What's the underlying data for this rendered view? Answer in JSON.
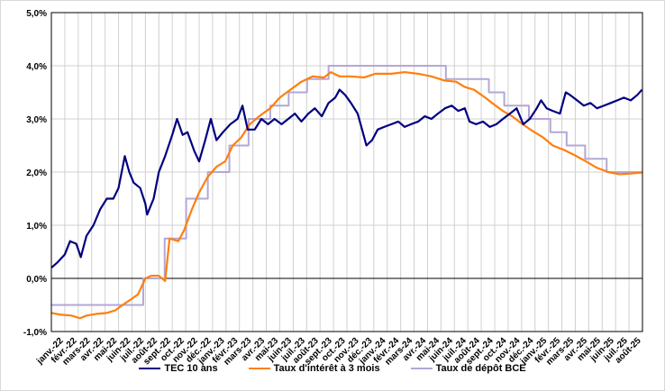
{
  "chart_data": {
    "type": "line",
    "title": "",
    "xlabel": "",
    "ylabel": "",
    "ylim": [
      -1.0,
      5.0
    ],
    "yticks": [
      "-1,0%",
      "0,0%",
      "1,0%",
      "2,0%",
      "3,0%",
      "4,0%",
      "5,0%"
    ],
    "ytick_values": [
      -1,
      0,
      1,
      2,
      3,
      4,
      5
    ],
    "grid": true,
    "legend_position": "bottom",
    "xtick_labels": [
      "janv.-22",
      "févr.-22",
      "mars-22",
      "avr.-22",
      "mai-22",
      "juin-22",
      "juil.-22",
      "août-22",
      "sept.-22",
      "oct.-22",
      "nov.-22",
      "déc.-22",
      "janv.-23",
      "févr.-23",
      "mars-23",
      "avr.-23",
      "mai-23",
      "juin-23",
      "juil.-23",
      "août-23",
      "sept.-23",
      "oct.-23",
      "nov.-23",
      "déc.-23",
      "janv.-24",
      "févr.-24",
      "mars-24",
      "avr.-24",
      "mai-24",
      "juin-24",
      "juil.-24",
      "août-24",
      "sept.-24",
      "oct.-24",
      "nov.-24",
      "déc.-24",
      "janv.-25",
      "févr.-25",
      "mars-25",
      "avr.-25",
      "mai-25",
      "juin-25",
      "juil.-25",
      "août-25"
    ],
    "x_range": [
      "2022-01-01",
      "2025-08-31"
    ],
    "series": [
      {
        "name": "TEC 10 ans",
        "color": "#000080",
        "step": false,
        "points": [
          [
            "2022-01-01",
            0.2
          ],
          [
            "2022-01-15",
            0.3
          ],
          [
            "2022-02-01",
            0.45
          ],
          [
            "2022-02-12",
            0.7
          ],
          [
            "2022-02-25",
            0.65
          ],
          [
            "2022-03-07",
            0.4
          ],
          [
            "2022-03-20",
            0.8
          ],
          [
            "2022-04-05",
            1.0
          ],
          [
            "2022-04-20",
            1.3
          ],
          [
            "2022-05-05",
            1.5
          ],
          [
            "2022-05-20",
            1.5
          ],
          [
            "2022-06-01",
            1.7
          ],
          [
            "2022-06-15",
            2.3
          ],
          [
            "2022-06-25",
            2.0
          ],
          [
            "2022-07-05",
            1.8
          ],
          [
            "2022-07-20",
            1.7
          ],
          [
            "2022-08-01",
            1.4
          ],
          [
            "2022-08-05",
            1.2
          ],
          [
            "2022-08-20",
            1.5
          ],
          [
            "2022-09-01",
            2.0
          ],
          [
            "2022-09-15",
            2.3
          ],
          [
            "2022-10-01",
            2.7
          ],
          [
            "2022-10-12",
            3.0
          ],
          [
            "2022-10-25",
            2.7
          ],
          [
            "2022-11-05",
            2.75
          ],
          [
            "2022-11-20",
            2.4
          ],
          [
            "2022-12-01",
            2.2
          ],
          [
            "2022-12-15",
            2.6
          ],
          [
            "2022-12-28",
            3.0
          ],
          [
            "2023-01-10",
            2.6
          ],
          [
            "2023-01-25",
            2.75
          ],
          [
            "2023-02-10",
            2.9
          ],
          [
            "2023-02-25",
            3.0
          ],
          [
            "2023-03-08",
            3.25
          ],
          [
            "2023-03-20",
            2.8
          ],
          [
            "2023-04-05",
            2.8
          ],
          [
            "2023-04-20",
            3.0
          ],
          [
            "2023-05-05",
            2.9
          ],
          [
            "2023-05-20",
            3.0
          ],
          [
            "2023-06-05",
            2.9
          ],
          [
            "2023-06-20",
            3.0
          ],
          [
            "2023-07-05",
            3.1
          ],
          [
            "2023-07-20",
            2.95
          ],
          [
            "2023-08-05",
            3.1
          ],
          [
            "2023-08-20",
            3.2
          ],
          [
            "2023-09-05",
            3.05
          ],
          [
            "2023-09-20",
            3.3
          ],
          [
            "2023-10-05",
            3.4
          ],
          [
            "2023-10-15",
            3.55
          ],
          [
            "2023-10-28",
            3.45
          ],
          [
            "2023-11-10",
            3.3
          ],
          [
            "2023-11-25",
            3.1
          ],
          [
            "2023-12-05",
            2.8
          ],
          [
            "2023-12-15",
            2.5
          ],
          [
            "2023-12-28",
            2.6
          ],
          [
            "2024-01-10",
            2.8
          ],
          [
            "2024-01-25",
            2.85
          ],
          [
            "2024-02-10",
            2.9
          ],
          [
            "2024-02-25",
            2.95
          ],
          [
            "2024-03-10",
            2.85
          ],
          [
            "2024-03-25",
            2.9
          ],
          [
            "2024-04-10",
            2.95
          ],
          [
            "2024-04-25",
            3.05
          ],
          [
            "2024-05-10",
            3.0
          ],
          [
            "2024-05-25",
            3.1
          ],
          [
            "2024-06-10",
            3.2
          ],
          [
            "2024-06-25",
            3.25
          ],
          [
            "2024-07-10",
            3.15
          ],
          [
            "2024-07-25",
            3.2
          ],
          [
            "2024-08-05",
            2.95
          ],
          [
            "2024-08-20",
            2.9
          ],
          [
            "2024-09-05",
            2.95
          ],
          [
            "2024-09-20",
            2.85
          ],
          [
            "2024-10-05",
            2.9
          ],
          [
            "2024-10-20",
            3.0
          ],
          [
            "2024-11-05",
            3.1
          ],
          [
            "2024-11-20",
            3.2
          ],
          [
            "2024-12-05",
            2.9
          ],
          [
            "2024-12-20",
            3.0
          ],
          [
            "2025-01-05",
            3.2
          ],
          [
            "2025-01-15",
            3.35
          ],
          [
            "2025-01-28",
            3.2
          ],
          [
            "2025-02-10",
            3.15
          ],
          [
            "2025-02-25",
            3.1
          ],
          [
            "2025-03-10",
            3.5
          ],
          [
            "2025-03-20",
            3.45
          ],
          [
            "2025-04-05",
            3.35
          ],
          [
            "2025-04-20",
            3.25
          ],
          [
            "2025-05-05",
            3.3
          ],
          [
            "2025-05-20",
            3.2
          ],
          [
            "2025-06-05",
            3.25
          ],
          [
            "2025-06-20",
            3.3
          ],
          [
            "2025-07-05",
            3.35
          ],
          [
            "2025-07-20",
            3.4
          ],
          [
            "2025-08-05",
            3.35
          ],
          [
            "2025-08-20",
            3.45
          ],
          [
            "2025-08-31",
            3.55
          ]
        ]
      },
      {
        "name": "Taux d'intérêt à 3 mois",
        "color": "#ff7f0e",
        "step": false,
        "points": [
          [
            "2022-01-01",
            -0.65
          ],
          [
            "2022-01-20",
            -0.68
          ],
          [
            "2022-02-15",
            -0.7
          ],
          [
            "2022-03-05",
            -0.75
          ],
          [
            "2022-03-20",
            -0.7
          ],
          [
            "2022-04-10",
            -0.67
          ],
          [
            "2022-05-05",
            -0.65
          ],
          [
            "2022-05-25",
            -0.6
          ],
          [
            "2022-06-10",
            -0.5
          ],
          [
            "2022-06-28",
            -0.4
          ],
          [
            "2022-07-15",
            -0.3
          ],
          [
            "2022-08-01",
            0.0
          ],
          [
            "2022-08-15",
            0.05
          ],
          [
            "2022-09-01",
            0.05
          ],
          [
            "2022-09-15",
            -0.05
          ],
          [
            "2022-09-25",
            0.75
          ],
          [
            "2022-10-15",
            0.7
          ],
          [
            "2022-10-28",
            0.9
          ],
          [
            "2022-11-15",
            1.3
          ],
          [
            "2022-11-30",
            1.6
          ],
          [
            "2022-12-20",
            1.9
          ],
          [
            "2023-01-10",
            2.1
          ],
          [
            "2023-01-30",
            2.2
          ],
          [
            "2023-02-15",
            2.5
          ],
          [
            "2023-03-05",
            2.65
          ],
          [
            "2023-03-25",
            2.9
          ],
          [
            "2023-04-15",
            3.05
          ],
          [
            "2023-05-10",
            3.2
          ],
          [
            "2023-06-01",
            3.4
          ],
          [
            "2023-06-25",
            3.55
          ],
          [
            "2023-07-20",
            3.7
          ],
          [
            "2023-08-15",
            3.8
          ],
          [
            "2023-09-10",
            3.78
          ],
          [
            "2023-09-25",
            3.88
          ],
          [
            "2023-10-15",
            3.8
          ],
          [
            "2023-11-10",
            3.8
          ],
          [
            "2023-12-10",
            3.78
          ],
          [
            "2024-01-05",
            3.85
          ],
          [
            "2024-02-10",
            3.85
          ],
          [
            "2024-03-10",
            3.88
          ],
          [
            "2024-04-10",
            3.85
          ],
          [
            "2024-05-10",
            3.8
          ],
          [
            "2024-06-10",
            3.72
          ],
          [
            "2024-07-05",
            3.7
          ],
          [
            "2024-07-25",
            3.6
          ],
          [
            "2024-08-15",
            3.55
          ],
          [
            "2024-09-10",
            3.4
          ],
          [
            "2024-09-25",
            3.3
          ],
          [
            "2024-10-20",
            3.15
          ],
          [
            "2024-11-10",
            3.05
          ],
          [
            "2024-11-30",
            2.92
          ],
          [
            "2024-12-25",
            2.78
          ],
          [
            "2025-01-20",
            2.65
          ],
          [
            "2025-02-10",
            2.5
          ],
          [
            "2025-03-05",
            2.42
          ],
          [
            "2025-03-30",
            2.32
          ],
          [
            "2025-04-25",
            2.2
          ],
          [
            "2025-05-20",
            2.08
          ],
          [
            "2025-06-15",
            2.0
          ],
          [
            "2025-07-10",
            1.96
          ],
          [
            "2025-08-01",
            1.97
          ],
          [
            "2025-08-31",
            1.99
          ]
        ]
      },
      {
        "name": "Taux de dépôt BCE",
        "color": "#b4a7d6",
        "step": true,
        "points": [
          [
            "2022-01-01",
            -0.5
          ],
          [
            "2022-07-27",
            0.0
          ],
          [
            "2022-09-14",
            0.75
          ],
          [
            "2022-11-02",
            1.5
          ],
          [
            "2022-12-21",
            2.0
          ],
          [
            "2023-02-08",
            2.5
          ],
          [
            "2023-03-22",
            3.0
          ],
          [
            "2023-05-10",
            3.25
          ],
          [
            "2023-06-21",
            3.5
          ],
          [
            "2023-08-02",
            3.75
          ],
          [
            "2023-09-20",
            4.0
          ],
          [
            "2024-06-12",
            3.75
          ],
          [
            "2024-09-18",
            3.5
          ],
          [
            "2024-10-23",
            3.25
          ],
          [
            "2024-12-18",
            3.0
          ],
          [
            "2025-02-05",
            2.75
          ],
          [
            "2025-03-12",
            2.5
          ],
          [
            "2025-04-23",
            2.25
          ],
          [
            "2025-06-11",
            2.0
          ],
          [
            "2025-08-31",
            2.0
          ]
        ]
      }
    ]
  }
}
